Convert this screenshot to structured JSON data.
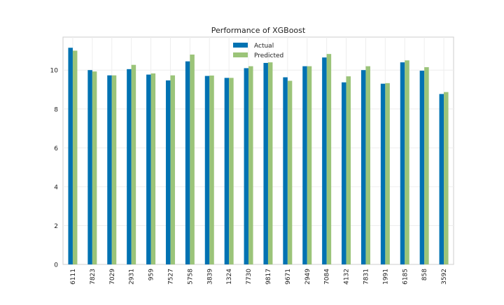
{
  "chart_data": {
    "type": "bar",
    "title": "Performance of XGBoost",
    "xlabel": "",
    "ylabel": "",
    "categories": [
      "6111",
      "7823",
      "7029",
      "2931",
      "959",
      "7527",
      "5758",
      "3839",
      "1324",
      "7730",
      "9817",
      "9671",
      "2949",
      "7084",
      "4132",
      "7831",
      "1991",
      "6185",
      "858",
      "3592"
    ],
    "series": [
      {
        "name": "Actual",
        "color": "#0072b2",
        "values": [
          11.15,
          10.0,
          9.73,
          10.05,
          9.77,
          9.47,
          10.45,
          9.7,
          9.6,
          10.1,
          10.37,
          9.63,
          10.2,
          10.65,
          9.37,
          10.0,
          9.3,
          10.4,
          9.97,
          8.77
        ]
      },
      {
        "name": "Predicted",
        "color": "#9bc479",
        "values": [
          11.0,
          9.93,
          9.73,
          10.27,
          9.83,
          9.73,
          10.8,
          9.72,
          9.6,
          10.2,
          10.4,
          9.45,
          10.2,
          10.83,
          9.68,
          10.2,
          9.33,
          10.5,
          10.15,
          8.87
        ]
      }
    ],
    "yticks": [
      0,
      2,
      4,
      6,
      8,
      10
    ],
    "ylim": [
      0,
      11.7
    ],
    "legend_position": "top-center",
    "grid": true
  }
}
